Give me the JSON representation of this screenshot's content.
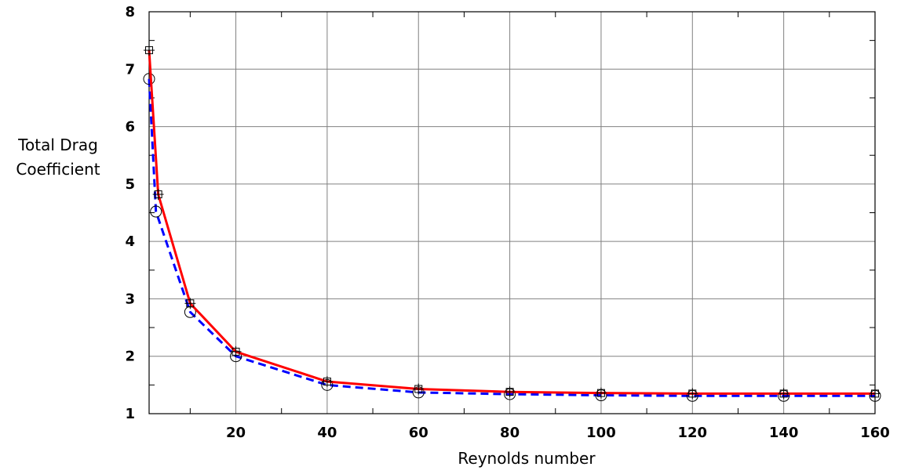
{
  "chart_data": {
    "type": "line",
    "title": "",
    "xlabel": "Reynolds number",
    "ylabel_lines": [
      "Total Drag",
      "Coefficient"
    ],
    "xlim": [
      1,
      160
    ],
    "ylim": [
      1,
      8
    ],
    "xticks": [
      20,
      40,
      60,
      80,
      100,
      120,
      140,
      160
    ],
    "yticks": [
      1,
      2,
      3,
      4,
      5,
      6,
      7,
      8
    ],
    "grid": true,
    "legend": "none",
    "series": [
      {
        "style": "solid",
        "marker": "square-plus",
        "color": "#ff0000",
        "x": [
          1,
          3,
          10,
          20,
          40,
          60,
          80,
          100,
          120,
          140,
          160
        ],
        "y": [
          7.33,
          4.82,
          2.92,
          2.08,
          1.56,
          1.43,
          1.38,
          1.36,
          1.35,
          1.35,
          1.35
        ]
      },
      {
        "style": "dashed",
        "marker": "circle",
        "color": "#0000ff",
        "x": [
          1,
          2.5,
          10,
          20,
          40,
          60,
          80,
          100,
          120,
          140,
          160
        ],
        "y": [
          6.83,
          4.52,
          2.77,
          2.0,
          1.5,
          1.37,
          1.34,
          1.32,
          1.31,
          1.31,
          1.31
        ]
      }
    ]
  }
}
